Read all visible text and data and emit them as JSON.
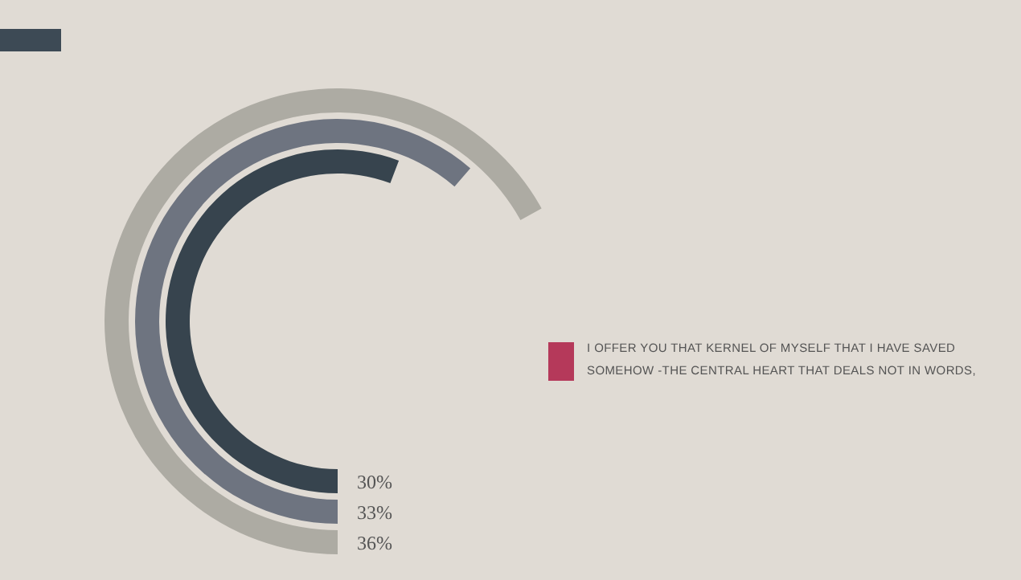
{
  "chart_data": {
    "type": "other",
    "categories": [
      null,
      null,
      null
    ],
    "values": [
      30,
      33,
      36
    ],
    "colors": [
      "#37444e",
      "#6e7480",
      "#adaba3"
    ],
    "value_labels": [
      "30%",
      "33%",
      "36%"
    ],
    "annotations": [
      "I OFFER YOU THAT KERNEL OF MYSELF THAT I HAVE SAVED SOMEHOW -THE CENTRAL HEART THAT DEALS NOT IN WORDS,"
    ]
  }
}
